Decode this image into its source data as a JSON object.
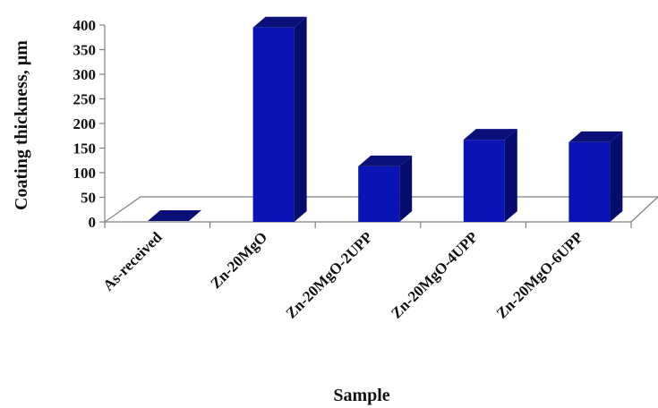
{
  "chart_data": {
    "type": "bar",
    "style": "3d-column",
    "xlabel": "Sample",
    "ylabel": "Coating thickness, µm",
    "ylim": [
      0,
      400
    ],
    "yticks": [
      0,
      50,
      100,
      150,
      200,
      250,
      300,
      350,
      400
    ],
    "categories": [
      "As-received",
      "Zn-20MgO",
      "Zn-20MgO-2UPP",
      "Zn-20MgO-4UPP",
      "Zn-20MgO-6UPP"
    ],
    "values": [
      0,
      395,
      113,
      167,
      162
    ],
    "grid": false,
    "legend": "none",
    "colors": {
      "bar_front": "#0A14B4",
      "bar_side": "#050C6E",
      "bar_top": "#0A1078",
      "axis": "#808080"
    }
  }
}
